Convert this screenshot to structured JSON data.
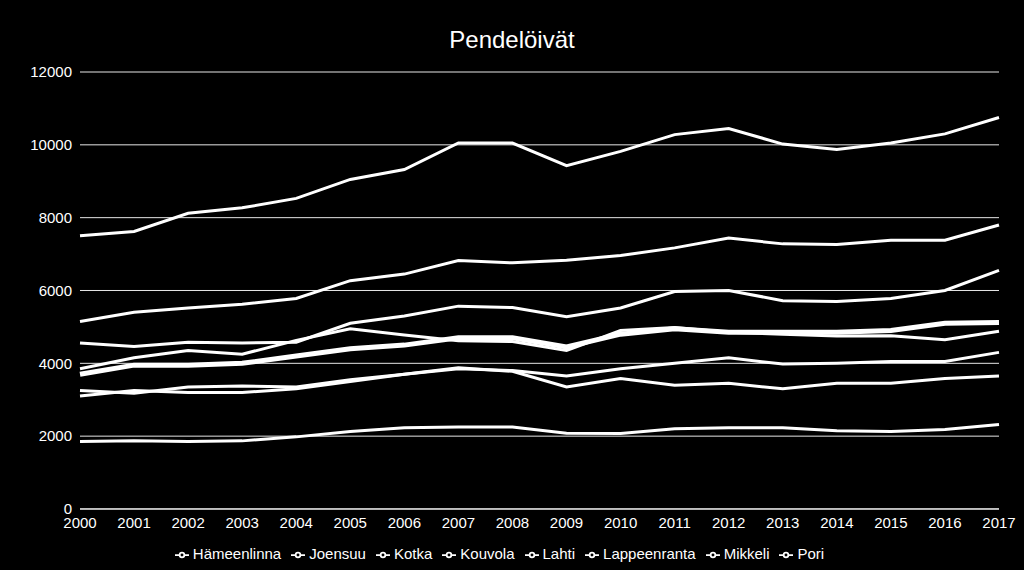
{
  "chart_data": {
    "type": "line",
    "title": "Pendelöivät",
    "categories": [
      "2000",
      "2001",
      "2002",
      "2003",
      "2004",
      "2005",
      "2006",
      "2007",
      "2008",
      "2009",
      "2010",
      "2011",
      "2012",
      "2013",
      "2014",
      "2015",
      "2016",
      "2017"
    ],
    "series": [
      {
        "name": "Hämeenlinna",
        "color": "#ffffff",
        "values": [
          3850,
          4150,
          4350,
          4250,
          4630,
          4950,
          4780,
          4620,
          4600,
          4350,
          4900,
          4980,
          4850,
          4800,
          4750,
          4760,
          4650,
          4880
        ]
      },
      {
        "name": "Joensuu",
        "color": "#ffffff",
        "values": [
          3250,
          3180,
          3350,
          3380,
          3350,
          3550,
          3700,
          3850,
          3800,
          3650,
          3850,
          4000,
          4150,
          3980,
          4000,
          4050,
          4050,
          4300
        ]
      },
      {
        "name": "Kotka",
        "color": "#ffffff",
        "values": [
          3100,
          3250,
          3200,
          3200,
          3300,
          3500,
          3700,
          3880,
          3780,
          3350,
          3580,
          3400,
          3450,
          3300,
          3450,
          3450,
          3580,
          3650
        ]
      },
      {
        "name": "Kouvola",
        "color": "#ffffff",
        "values": [
          3700,
          3950,
          3950,
          4000,
          4200,
          4400,
          4500,
          4700,
          4700,
          4450,
          4800,
          4950,
          4850,
          4850,
          4850,
          4900,
          5100,
          5120
        ]
      },
      {
        "name": "Lahti",
        "color": "#ffffff",
        "values": [
          7500,
          7620,
          8120,
          8270,
          8530,
          9050,
          9320,
          10050,
          10050,
          9430,
          9820,
          10280,
          10450,
          10020,
          9870,
          10050,
          10300,
          10750
        ]
      },
      {
        "name": "Lappeenranta",
        "color": "#ffffff",
        "values": [
          4560,
          4460,
          4580,
          4560,
          4580,
          5100,
          5300,
          5570,
          5530,
          5280,
          5520,
          5970,
          6000,
          5720,
          5700,
          5780,
          6000,
          6550
        ]
      },
      {
        "name": "Mikkeli",
        "color": "#ffffff",
        "values": [
          1850,
          1870,
          1850,
          1870,
          1980,
          2130,
          2230,
          2250,
          2250,
          2080,
          2070,
          2200,
          2230,
          2230,
          2150,
          2130,
          2180,
          2320
        ]
      },
      {
        "name": "Pori",
        "color": "#ffffff",
        "values": [
          5150,
          5400,
          5520,
          5620,
          5780,
          6270,
          6450,
          6820,
          6760,
          6830,
          6960,
          7170,
          7440,
          7280,
          7260,
          7380,
          7380,
          7800
        ]
      }
    ],
    "ylim": [
      0,
      12000
    ],
    "yticks": [
      0,
      2000,
      4000,
      6000,
      8000,
      10000,
      12000
    ],
    "grid": true,
    "legend": "bottom"
  }
}
